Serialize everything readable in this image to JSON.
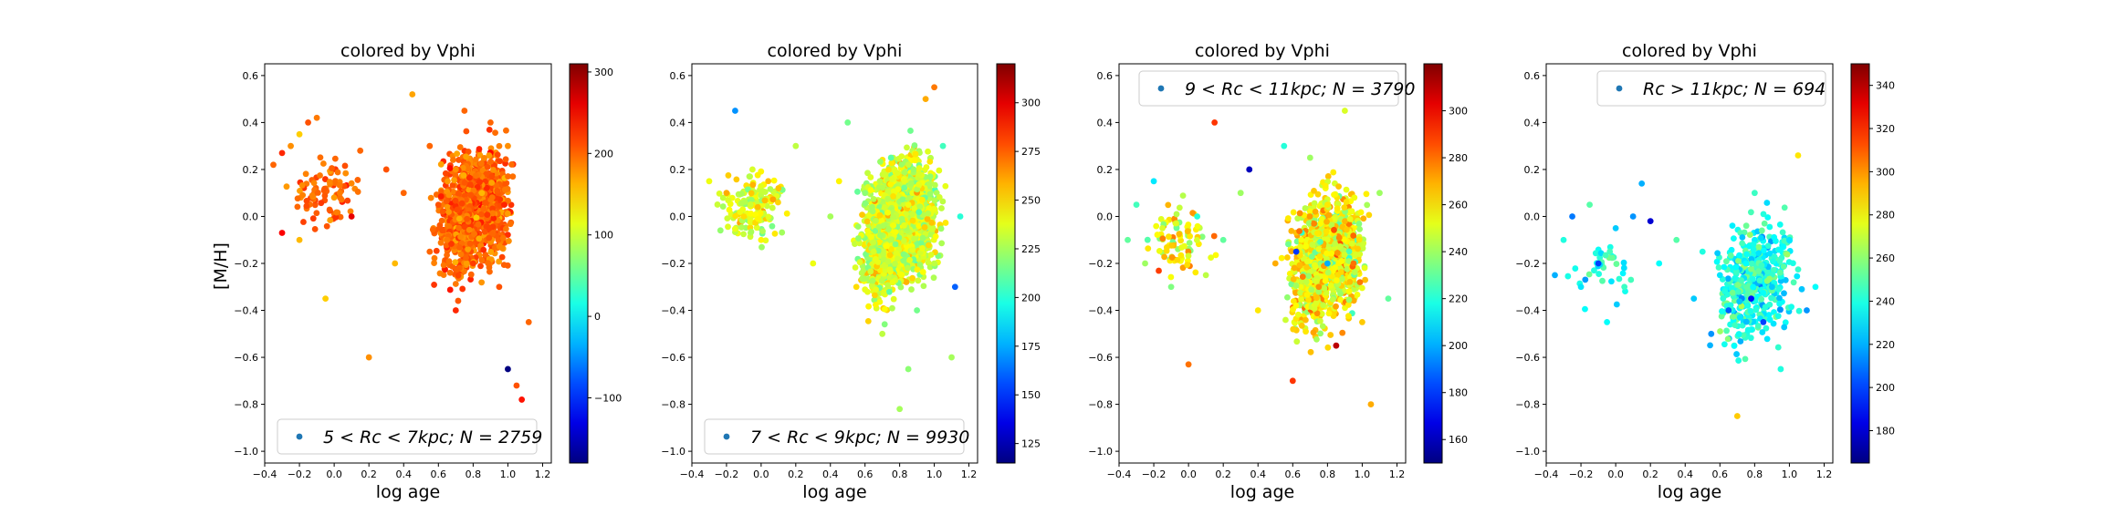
{
  "figure": {
    "ylabel": "[M/H]"
  },
  "chart_data": [
    {
      "type": "scatter",
      "title": "colored by Vphi",
      "xlabel": "log age",
      "ylabel": "[M/H]",
      "xlim": [
        -0.4,
        1.25
      ],
      "ylim": [
        -1.05,
        0.65
      ],
      "xticks": [
        "−0.4",
        "−0.2",
        "0.0",
        "0.2",
        "0.4",
        "0.6",
        "0.8",
        "1.0",
        "1.2"
      ],
      "yticks": [
        "−1.0",
        "−0.8",
        "−0.6",
        "−0.4",
        "−0.2",
        "0.0",
        "0.2",
        "0.4",
        "0.6"
      ],
      "legend": "5 < Rc < 7kpc;  N = 2759",
      "legend_position": "lower-center",
      "colorbar": {
        "label": "",
        "cmap": "jet",
        "min": -180,
        "max": 310,
        "ticks": [
          "300",
          "200",
          "100",
          "0",
          "−100"
        ]
      },
      "series": [
        {
          "name": "5 < Rc < 7kpc;  N = 2759",
          "points": [
            {
              "x": -0.35,
              "y": 0.22,
              "c": 200
            },
            {
              "x": -0.3,
              "y": 0.27,
              "c": 230
            },
            {
              "x": -0.25,
              "y": 0.3,
              "c": 180
            },
            {
              "x": -0.2,
              "y": 0.35,
              "c": 150
            },
            {
              "x": -0.15,
              "y": 0.4,
              "c": 210
            },
            {
              "x": -0.1,
              "y": 0.42,
              "c": 190
            },
            {
              "x": -0.3,
              "y": -0.07,
              "c": 250
            },
            {
              "x": -0.2,
              "y": -0.1,
              "c": 160
            },
            {
              "x": -0.05,
              "y": -0.35,
              "c": 150
            },
            {
              "x": 0.2,
              "y": -0.6,
              "c": 180
            },
            {
              "x": 0.15,
              "y": 0.28,
              "c": 200
            },
            {
              "x": 0.1,
              "y": 0.0,
              "c": 260
            },
            {
              "x": 0.3,
              "y": 0.2,
              "c": 210
            },
            {
              "x": 0.4,
              "y": 0.1,
              "c": 200
            },
            {
              "x": 0.45,
              "y": 0.52,
              "c": 170
            },
            {
              "x": 0.55,
              "y": 0.3,
              "c": 200
            },
            {
              "x": 0.6,
              "y": 0.05,
              "c": 210
            },
            {
              "x": 0.65,
              "y": -0.1,
              "c": 190
            },
            {
              "x": 0.7,
              "y": 0.2,
              "c": 180
            },
            {
              "x": 0.75,
              "y": 0.45,
              "c": 200
            },
            {
              "x": 0.8,
              "y": -0.2,
              "c": 220
            },
            {
              "x": 0.85,
              "y": 0.1,
              "c": 160
            },
            {
              "x": 0.9,
              "y": 0.4,
              "c": 200
            },
            {
              "x": 0.95,
              "y": -0.3,
              "c": 210
            },
            {
              "x": 1.0,
              "y": -0.65,
              "c": -180
            },
            {
              "x": 1.05,
              "y": -0.72,
              "c": 210
            },
            {
              "x": 1.08,
              "y": -0.78,
              "c": 240
            },
            {
              "x": 1.12,
              "y": -0.45,
              "c": 200
            },
            {
              "x": 1.0,
              "y": 0.3,
              "c": 180
            },
            {
              "x": 0.7,
              "y": -0.4,
              "c": 230
            },
            {
              "x": 0.55,
              "y": -0.15,
              "c": 200
            },
            {
              "x": 0.35,
              "y": -0.2,
              "c": 160
            }
          ]
        }
      ]
    },
    {
      "type": "scatter",
      "title": "colored by Vphi",
      "xlabel": "log age",
      "ylabel": "",
      "xlim": [
        -0.4,
        1.25
      ],
      "ylim": [
        -1.05,
        0.65
      ],
      "xticks": [
        "−0.4",
        "−0.2",
        "0.0",
        "0.2",
        "0.4",
        "0.6",
        "0.8",
        "1.0",
        "1.2"
      ],
      "yticks": [
        "−1.0",
        "−0.8",
        "−0.6",
        "−0.4",
        "−0.2",
        "0.0",
        "0.2",
        "0.4",
        "0.6"
      ],
      "legend": "7 < Rc < 9kpc;  N = 9930",
      "legend_position": "lower-center",
      "colorbar": {
        "label": "",
        "cmap": "jet",
        "min": 115,
        "max": 320,
        "ticks": [
          "300",
          "275",
          "250",
          "225",
          "200",
          "175",
          "150",
          "125"
        ]
      },
      "series": [
        {
          "name": "7 < Rc < 9kpc;  N = 9930",
          "points": [
            {
              "x": -0.3,
              "y": 0.15,
              "c": 240
            },
            {
              "x": -0.2,
              "y": 0.1,
              "c": 260
            },
            {
              "x": -0.15,
              "y": 0.45,
              "c": 170
            },
            {
              "x": -0.1,
              "y": 0.0,
              "c": 250
            },
            {
              "x": -0.05,
              "y": 0.2,
              "c": 235
            },
            {
              "x": 0.0,
              "y": -0.1,
              "c": 245
            },
            {
              "x": 0.1,
              "y": 0.12,
              "c": 255
            },
            {
              "x": 0.2,
              "y": 0.3,
              "c": 230
            },
            {
              "x": 0.3,
              "y": -0.2,
              "c": 240
            },
            {
              "x": 0.4,
              "y": 0.0,
              "c": 225
            },
            {
              "x": 0.5,
              "y": 0.4,
              "c": 215
            },
            {
              "x": 0.55,
              "y": -0.3,
              "c": 250
            },
            {
              "x": 0.6,
              "y": 0.1,
              "c": 220
            },
            {
              "x": 0.7,
              "y": -0.5,
              "c": 230
            },
            {
              "x": 0.75,
              "y": 0.25,
              "c": 210
            },
            {
              "x": 0.8,
              "y": -0.82,
              "c": 225
            },
            {
              "x": 0.85,
              "y": 0.05,
              "c": 240
            },
            {
              "x": 0.9,
              "y": -0.4,
              "c": 215
            },
            {
              "x": 0.95,
              "y": 0.5,
              "c": 260
            },
            {
              "x": 1.0,
              "y": -0.2,
              "c": 230
            },
            {
              "x": 1.05,
              "y": 0.3,
              "c": 205
            },
            {
              "x": 1.1,
              "y": -0.6,
              "c": 225
            },
            {
              "x": 1.15,
              "y": 0.0,
              "c": 200
            },
            {
              "x": 1.0,
              "y": 0.55,
              "c": 270
            },
            {
              "x": 0.65,
              "y": -0.15,
              "c": 235
            },
            {
              "x": 0.85,
              "y": -0.65,
              "c": 220
            },
            {
              "x": 1.12,
              "y": -0.3,
              "c": 160
            },
            {
              "x": 0.45,
              "y": 0.15,
              "c": 245
            }
          ]
        }
      ]
    },
    {
      "type": "scatter",
      "title": "colored by Vphi",
      "xlabel": "log age",
      "ylabel": "",
      "xlim": [
        -0.4,
        1.25
      ],
      "ylim": [
        -1.05,
        0.65
      ],
      "xticks": [
        "−0.4",
        "−0.2",
        "0.0",
        "0.2",
        "0.4",
        "0.6",
        "0.8",
        "1.0",
        "1.2"
      ],
      "yticks": [
        "−1.0",
        "−0.8",
        "−0.6",
        "−0.4",
        "−0.2",
        "0.0",
        "0.2",
        "0.4",
        "0.6"
      ],
      "legend": "9 < Rc < 11kpc;  N = 3790",
      "legend_position": "upper-right",
      "colorbar": {
        "label": "",
        "cmap": "jet",
        "min": 150,
        "max": 320,
        "ticks": [
          "300",
          "280",
          "260",
          "240",
          "220",
          "200",
          "180",
          "160"
        ]
      },
      "series": [
        {
          "name": "9 < Rc < 11kpc;  N = 3790",
          "points": [
            {
              "x": -0.35,
              "y": -0.1,
              "c": 230
            },
            {
              "x": -0.3,
              "y": 0.05,
              "c": 225
            },
            {
              "x": -0.25,
              "y": -0.2,
              "c": 240
            },
            {
              "x": -0.2,
              "y": 0.15,
              "c": 210
            },
            {
              "x": -0.15,
              "y": -0.05,
              "c": 250
            },
            {
              "x": -0.1,
              "y": -0.3,
              "c": 235
            },
            {
              "x": 0.0,
              "y": -0.63,
              "c": 280
            },
            {
              "x": 0.05,
              "y": 0.0,
              "c": 220
            },
            {
              "x": 0.1,
              "y": -0.25,
              "c": 245
            },
            {
              "x": 0.15,
              "y": 0.4,
              "c": 290
            },
            {
              "x": 0.2,
              "y": -0.1,
              "c": 230
            },
            {
              "x": 0.3,
              "y": 0.1,
              "c": 240
            },
            {
              "x": 0.4,
              "y": -0.4,
              "c": 260
            },
            {
              "x": 0.5,
              "y": -0.2,
              "c": 270
            },
            {
              "x": 0.55,
              "y": 0.3,
              "c": 220
            },
            {
              "x": 0.6,
              "y": -0.7,
              "c": 290
            },
            {
              "x": 0.65,
              "y": -0.1,
              "c": 255
            },
            {
              "x": 0.7,
              "y": 0.25,
              "c": 240
            },
            {
              "x": 0.75,
              "y": -0.3,
              "c": 275
            },
            {
              "x": 0.8,
              "y": 0.05,
              "c": 260
            },
            {
              "x": 0.85,
              "y": -0.55,
              "c": 310
            },
            {
              "x": 0.9,
              "y": 0.45,
              "c": 250
            },
            {
              "x": 0.95,
              "y": -0.2,
              "c": 280
            },
            {
              "x": 1.0,
              "y": -0.45,
              "c": 265
            },
            {
              "x": 1.05,
              "y": -0.8,
              "c": 270
            },
            {
              "x": 1.1,
              "y": 0.1,
              "c": 240
            },
            {
              "x": 1.15,
              "y": -0.35,
              "c": 230
            },
            {
              "x": 0.62,
              "y": -0.15,
              "c": 180
            },
            {
              "x": 0.8,
              "y": -0.2,
              "c": 200
            },
            {
              "x": 0.35,
              "y": 0.2,
              "c": 160
            }
          ]
        }
      ]
    },
    {
      "type": "scatter",
      "title": "colored by Vphi",
      "xlabel": "log age",
      "ylabel": "",
      "xlim": [
        -0.4,
        1.25
      ],
      "ylim": [
        -1.05,
        0.65
      ],
      "xticks": [
        "−0.4",
        "−0.2",
        "0.0",
        "0.2",
        "0.4",
        "0.6",
        "0.8",
        "1.0",
        "1.2"
      ],
      "yticks": [
        "−1.0",
        "−0.8",
        "−0.6",
        "−0.4",
        "−0.2",
        "0.0",
        "0.2",
        "0.4",
        "0.6"
      ],
      "legend": "Rc > 11kpc;  N = 694",
      "legend_position": "upper-right",
      "colorbar": {
        "label": "",
        "cmap": "jet",
        "min": 165,
        "max": 350,
        "ticks": [
          "340",
          "320",
          "300",
          "280",
          "260",
          "240",
          "220",
          "200",
          "180"
        ]
      },
      "series": [
        {
          "name": "Rc > 11kpc;  N = 694",
          "points": [
            {
              "x": -0.35,
              "y": -0.25,
              "c": 220
            },
            {
              "x": -0.3,
              "y": -0.1,
              "c": 240
            },
            {
              "x": -0.25,
              "y": 0.0,
              "c": 210
            },
            {
              "x": -0.2,
              "y": -0.3,
              "c": 230
            },
            {
              "x": -0.15,
              "y": 0.05,
              "c": 250
            },
            {
              "x": -0.1,
              "y": -0.2,
              "c": 200
            },
            {
              "x": -0.05,
              "y": -0.45,
              "c": 235
            },
            {
              "x": 0.0,
              "y": -0.05,
              "c": 225
            },
            {
              "x": 0.05,
              "y": -0.3,
              "c": 245
            },
            {
              "x": 0.1,
              "y": 0.0,
              "c": 215
            },
            {
              "x": 0.15,
              "y": 0.14,
              "c": 220
            },
            {
              "x": 0.25,
              "y": -0.2,
              "c": 235
            },
            {
              "x": 0.35,
              "y": -0.1,
              "c": 250
            },
            {
              "x": 0.45,
              "y": -0.35,
              "c": 225
            },
            {
              "x": 0.5,
              "y": -0.15,
              "c": 240
            },
            {
              "x": 0.55,
              "y": -0.5,
              "c": 215
            },
            {
              "x": 0.6,
              "y": -0.25,
              "c": 230
            },
            {
              "x": 0.65,
              "y": -0.4,
              "c": 205
            },
            {
              "x": 0.7,
              "y": -0.85,
              "c": 290
            },
            {
              "x": 0.75,
              "y": -0.2,
              "c": 235
            },
            {
              "x": 0.8,
              "y": 0.1,
              "c": 245
            },
            {
              "x": 0.85,
              "y": -0.45,
              "c": 200
            },
            {
              "x": 0.9,
              "y": -0.3,
              "c": 225
            },
            {
              "x": 0.95,
              "y": -0.65,
              "c": 240
            },
            {
              "x": 1.0,
              "y": -0.1,
              "c": 230
            },
            {
              "x": 1.05,
              "y": 0.26,
              "c": 285
            },
            {
              "x": 1.1,
              "y": -0.4,
              "c": 215
            },
            {
              "x": 1.15,
              "y": -0.3,
              "c": 235
            },
            {
              "x": 0.2,
              "y": -0.02,
              "c": 180
            },
            {
              "x": 0.78,
              "y": -0.35,
              "c": 190
            }
          ]
        }
      ]
    }
  ]
}
